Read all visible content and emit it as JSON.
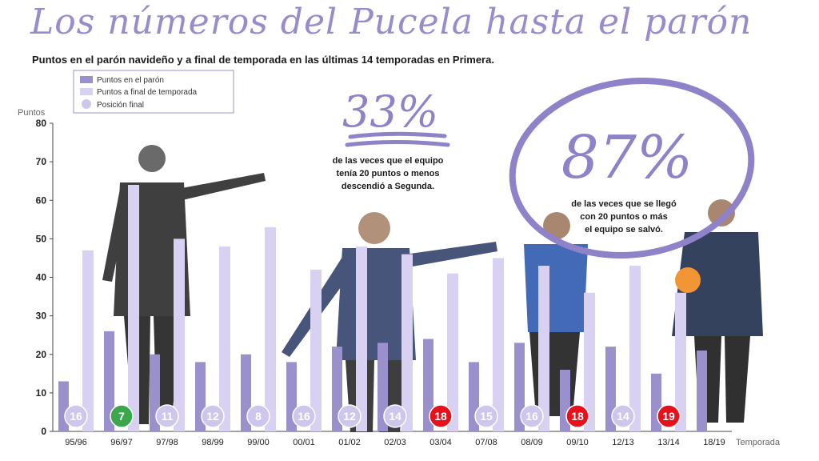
{
  "header": {
    "title": "Los números del Pucela hasta el parón",
    "subtitle": "Puntos en el parón navideño y a final de temporada en las últimas 14 temporadas en Primera."
  },
  "stats": {
    "stat1": {
      "value": "33%",
      "line1": "de las veces que el equipo",
      "line2": "tenía 20 puntos o menos",
      "line3": "descendió a Segunda."
    },
    "stat2": {
      "value": "87%",
      "line1": "de las veces que se llegó",
      "line2": "con 20 puntos o más",
      "line3": "el equipo se salvó."
    }
  },
  "colors": {
    "paron": "#9a90cc",
    "final": "#d9d1f2",
    "position": "#cfc6ee",
    "relegated": "#e8101a",
    "promoted": "#3aa84a",
    "accent": "#8f82c8"
  },
  "chart_data": {
    "type": "bar",
    "ylabel": "Puntos",
    "xlabel": "Temporada",
    "ylim": [
      0,
      80
    ],
    "yticks": [
      0,
      10,
      20,
      30,
      40,
      50,
      60,
      70,
      80
    ],
    "legend_position": "top-left",
    "categories": [
      "95/96",
      "96/97",
      "97/98",
      "98/99",
      "99/00",
      "00/01",
      "01/02",
      "02/03",
      "03/04",
      "07/08",
      "08/09",
      "09/10",
      "12/13",
      "13/14",
      "18/19"
    ],
    "series": [
      {
        "name": "Puntos en el parón",
        "values": [
          13,
          26,
          20,
          18,
          20,
          18,
          22,
          23,
          24,
          18,
          23,
          16,
          22,
          15,
          21
        ]
      },
      {
        "name": "Puntos a final de temporada",
        "values": [
          47,
          64,
          50,
          48,
          53,
          42,
          48,
          46,
          41,
          45,
          43,
          36,
          43,
          36,
          null
        ]
      }
    ],
    "positions_series_name": "Posición final",
    "final_positions": [
      16,
      7,
      11,
      12,
      8,
      16,
      12,
      14,
      18,
      15,
      16,
      18,
      14,
      19,
      null
    ],
    "position_status": [
      "",
      "europe",
      "",
      "",
      "",
      "",
      "",
      "",
      "relegated",
      "",
      "",
      "relegated",
      "",
      "relegated",
      ""
    ]
  }
}
